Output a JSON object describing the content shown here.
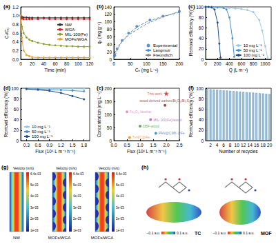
{
  "chart_data": [
    {
      "type": "line",
      "title": "(a)",
      "x_label": "Time (min)",
      "y_label": "Cₜ/C₀",
      "x": [
        0,
        2,
        5,
        10,
        15,
        20,
        30,
        40,
        50,
        60,
        70,
        80,
        90,
        100,
        110,
        120
      ],
      "series": [
        {
          "name": "NW",
          "color": "#333333",
          "values": [
            1,
            0.97,
            0.96,
            0.96,
            0.95,
            0.95,
            0.95,
            0.95,
            0.95,
            0.95,
            0.95,
            0.95,
            0.95,
            0.95,
            0.95,
            0.95
          ]
        },
        {
          "name": "WGA",
          "color": "#e8191c",
          "values": [
            1,
            0.93,
            0.92,
            0.92,
            0.92,
            0.92,
            0.92,
            0.93,
            0.92,
            0.92,
            0.92,
            0.92,
            0.92,
            0.92,
            0.92,
            0.92
          ]
        },
        {
          "name": "MIL-100(Fe)",
          "color": "#8aa030",
          "values": [
            1,
            0.75,
            0.6,
            0.5,
            0.45,
            0.42,
            0.38,
            0.35,
            0.33,
            0.32,
            0.31,
            0.3,
            0.3,
            0.29,
            0.29,
            0.29
          ]
        },
        {
          "name": "MOFs/WGA",
          "color": "#f0a030",
          "values": [
            1,
            0.5,
            0.2,
            0.1,
            0.07,
            0.05,
            0.04,
            0.04,
            0.04,
            0.04,
            0.04,
            0.04,
            0.04,
            0.04,
            0.04,
            0.04
          ]
        }
      ],
      "marker": "circle",
      "xlim": [
        0,
        120
      ],
      "xticks": [
        0,
        20,
        40,
        60,
        80,
        100,
        120
      ],
      "ylim": [
        0,
        1.2
      ],
      "yticks": [
        {
          "value": 0,
          "label": "0.0"
        },
        0.2,
        0.4,
        0.6,
        0.8,
        {
          "value": 1,
          "label": "1.0"
        },
        1.2
      ],
      "legend": "center right"
    },
    {
      "type": "line",
      "title": "(b)",
      "x_label": "Cₑ (mg L⁻¹)",
      "y_label": "qₑ (mg g⁻¹)",
      "series": [
        {
          "name": "Experimental",
          "type": "scatter",
          "marker": "circle",
          "color": "#3a78c2",
          "x": [
            3,
            10,
            25,
            45,
            70,
            110,
            150,
            200
          ],
          "values": [
            10,
            28,
            50,
            70,
            88,
            105,
            115,
            128
          ]
        },
        {
          "name": "Langmuir",
          "type": "line",
          "line_style": "dashed",
          "color": "#4a90d9",
          "x": [
            0,
            10,
            25,
            50,
            75,
            100,
            150,
            200
          ],
          "values": [
            0,
            25,
            48,
            72,
            88,
            100,
            115,
            125
          ]
        },
        {
          "name": "Freundlich",
          "type": "line",
          "line_style": "dashed",
          "color": "#888888",
          "x": [
            2,
            10,
            25,
            50,
            100,
            150,
            200
          ],
          "values": [
            15,
            30,
            48,
            68,
            95,
            113,
            128
          ]
        }
      ],
      "xlim": [
        0,
        200
      ],
      "xticks": [
        0,
        50,
        100,
        150,
        200
      ],
      "ylim": [
        0,
        140
      ],
      "yticks": [
        0,
        20,
        40,
        60,
        80,
        100,
        120,
        140
      ],
      "legend": "lower right"
    },
    {
      "type": "line",
      "title": "(c)",
      "x_label": "Q (L m⁻²)",
      "y_label": "Removal efficiency (%)",
      "series": [
        {
          "name": "10 mg L⁻¹",
          "color": "#9ecae1",
          "x": [
            0,
            100,
            200,
            300,
            400,
            500,
            600,
            700,
            800,
            900,
            950,
            1000,
            1040
          ],
          "values": [
            100,
            100,
            99,
            99,
            98,
            97,
            96,
            94,
            90,
            75,
            55,
            25,
            2
          ]
        },
        {
          "name": "50 mg L⁻¹",
          "color": "#4a90d0",
          "x": [
            0,
            100,
            200,
            300,
            350,
            400,
            450,
            480
          ],
          "values": [
            100,
            100,
            99,
            98,
            95,
            80,
            40,
            5
          ]
        },
        {
          "name": "100 mg L⁻¹",
          "color": "#1f4e8c",
          "x": [
            0,
            50,
            100,
            150,
            200,
            230,
            250
          ],
          "values": [
            100,
            100,
            99,
            95,
            70,
            30,
            3
          ]
        }
      ],
      "marker": "circle",
      "xlim": [
        0,
        1100
      ],
      "xticks": [
        0,
        200,
        400,
        600,
        800,
        1000
      ],
      "ylim": [
        0,
        100
      ],
      "yticks": [
        0,
        20,
        40,
        60,
        80,
        100
      ],
      "legend": "lower center"
    },
    {
      "type": "line",
      "title": "(d)",
      "x_label": "Flux (10⁴ L m⁻² h⁻¹)",
      "y_label": "Removal efficiency (%)",
      "x": [
        0.3,
        0.6,
        0.9,
        1.2,
        1.5,
        1.8
      ],
      "series": [
        {
          "name": "10 mg L⁻¹",
          "color": "#9ecae1",
          "values": [
            99.5,
            99.4,
            99.3,
            99.1,
            99,
            98.8
          ]
        },
        {
          "name": "50 mg L⁻¹",
          "color": "#4a90d0",
          "values": [
            99,
            98.5,
            97.5,
            96.5,
            95.5,
            94
          ]
        },
        {
          "name": "100 mg L⁻¹",
          "color": "#1f4e8c",
          "values": [
            98.5,
            97,
            95,
            91,
            85,
            79
          ]
        }
      ],
      "marker": "circle",
      "xlim": [
        0.15,
        1.95
      ],
      "xticks": [
        0.3,
        0.6,
        0.9,
        1.2,
        1.5,
        1.8
      ],
      "ylim": [
        0,
        100
      ],
      "yticks": [
        0,
        20,
        40,
        60,
        80,
        100
      ],
      "legend": "lower left"
    },
    {
      "type": "scatter",
      "title": "(e)",
      "x_label": "Flux (10³ L m⁻² h⁻¹)",
      "y_label": "Concentration (mg L⁻¹)",
      "series": [
        {
          "name": "This work",
          "color": "#e41a1c",
          "marker": "star",
          "x": [
            2.0
          ],
          "values": [
            180
          ]
        },
        {
          "name": "wood-derived carbon/Bi₂O₃/Bi₂S₃",
          "color": "#8b1a1a",
          "marker": "circle",
          "x": [
            1.95
          ],
          "values": [
            135
          ]
        },
        {
          "name": "Fe₃O₄ biochar",
          "color": "#e377c2",
          "marker": "circle",
          "x": [
            0.5
          ],
          "values": [
            110
          ]
        },
        {
          "name": "MIL-100(Fe)/wood",
          "color": "#9b59b6",
          "marker": "circle",
          "x": [
            1.4
          ],
          "values": [
            80
          ]
        },
        {
          "name": "DBF-wood",
          "color": "#2ca02c",
          "marker": "circle",
          "x": [
            1.0
          ],
          "values": [
            55
          ]
        },
        {
          "name": "PAN@CMK-3/Fe",
          "color": "#1f77b4",
          "marker": "circle",
          "x": [
            1.6
          ],
          "values": [
            28
          ]
        },
        {
          "name": "Ti-N/C@Fe",
          "color": "#ff7f0e",
          "marker": "circle",
          "x": [
            0.6
          ],
          "values": [
            12
          ]
        }
      ],
      "xlim": [
        0,
        2.5
      ],
      "xticks": [
        {
          "value": 0,
          "label": "0.0"
        },
        0.5,
        {
          "value": 1,
          "label": "1.0"
        },
        1.5,
        {
          "value": 2,
          "label": "2.0"
        },
        2.5
      ],
      "ylim": [
        0,
        200
      ],
      "yticks": [
        0,
        50,
        100,
        150,
        200
      ]
    },
    {
      "type": "bar",
      "title": "(f)",
      "x_label": "Number of recycles",
      "y_label": "Removal efficiency (%)",
      "categories": [
        null,
        2,
        null,
        4,
        null,
        6,
        null,
        8,
        null,
        10,
        null,
        12,
        null,
        14,
        null,
        16,
        null,
        18,
        null,
        20
      ],
      "values": [
        98.5,
        98,
        97.5,
        97,
        96.5,
        96,
        95.5,
        95,
        94.5,
        94,
        93.5,
        93,
        92.5,
        92,
        91.5,
        91,
        90.5,
        90,
        89.5,
        89
      ],
      "color": "#9ec5e0",
      "ylim": [
        0,
        100
      ],
      "yticks": [
        0,
        20,
        40,
        60,
        80,
        100
      ]
    }
  ],
  "panels": {
    "g": {
      "label": "(g)",
      "titles": [
        "NW",
        "MOFs/WGA",
        "MOFs/WGA"
      ],
      "colorbar_title": "Velocity (m/s)",
      "colorbar_ticks": [
        "6.4e-03",
        "5e-03",
        "4e-03",
        "3e-03",
        "2e-03",
        "1e-03"
      ]
    },
    "h": {
      "label": "(h)",
      "molecules": [
        "TC",
        "MOF"
      ],
      "scale_min": "−0.1 a.u.",
      "scale_max": "0.1 a.u."
    }
  }
}
